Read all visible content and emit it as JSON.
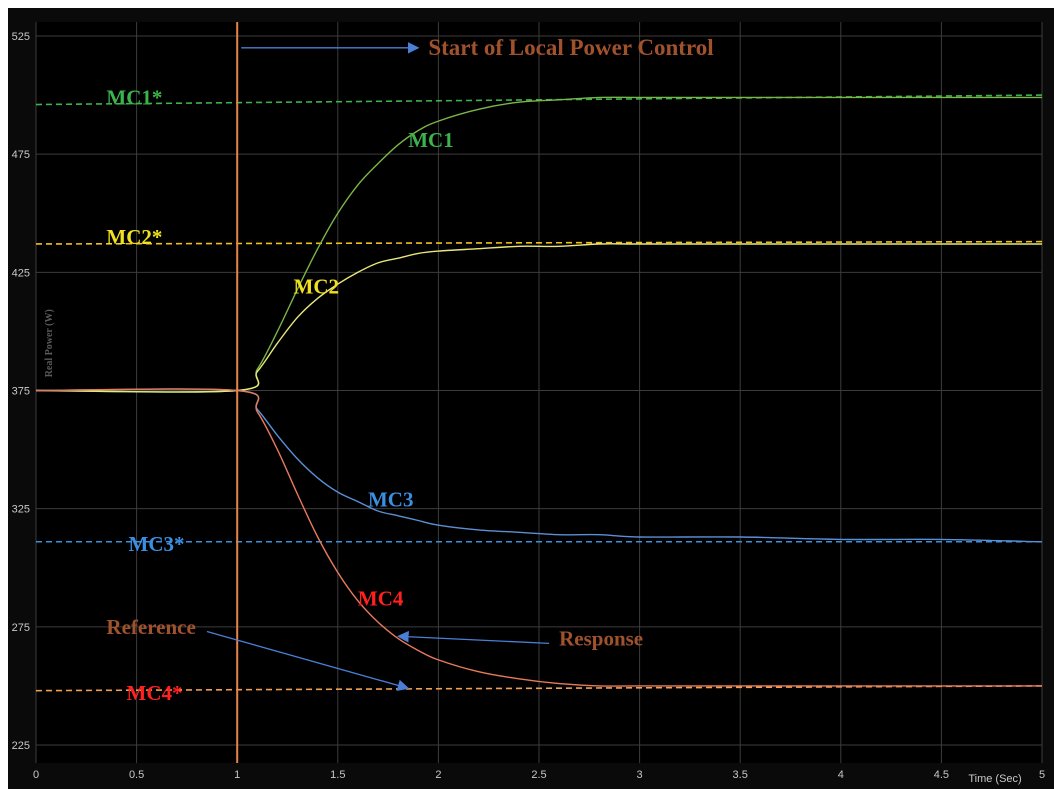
{
  "chart_data": {
    "type": "line",
    "title": "",
    "xlabel": "Time (Sec)",
    "ylabel": "Real Power (W)",
    "xlim": [
      0,
      5
    ],
    "ylim": [
      225,
      525
    ],
    "x_ticks": [
      0,
      0.5,
      1,
      1.5,
      2,
      2.5,
      3,
      3.5,
      4,
      4.5,
      5
    ],
    "x_tick_labels": [
      "0",
      "0.5",
      "1",
      "1.5",
      "2",
      "2.5",
      "3",
      "3.5",
      "4",
      "4.5",
      "5"
    ],
    "y_ticks": [
      225,
      275,
      325,
      375,
      425,
      475,
      525
    ],
    "y_tick_labels": [
      "225",
      "275",
      "325",
      "375",
      "425",
      "475",
      "525"
    ],
    "grid": true,
    "background": "#000000",
    "event_line": {
      "x": 1.0,
      "color": "#e8834e"
    },
    "series": [
      {
        "name": "MC1",
        "color": "#7ab648",
        "x": [
          0,
          1.0,
          1.1,
          1.2,
          1.3,
          1.4,
          1.5,
          1.6,
          1.7,
          1.8,
          1.9,
          2.0,
          2.2,
          2.4,
          2.6,
          2.8,
          3.0,
          3.5,
          4.0,
          4.5,
          5.0
        ],
        "y": [
          375,
          375,
          384,
          400,
          418,
          435,
          450,
          462,
          471,
          479,
          485,
          489,
          494,
          497,
          498,
          499,
          499,
          499,
          499,
          499,
          499
        ],
        "reference": {
          "name": "MC1*",
          "value": 496,
          "value_end": 500,
          "color": "#3cb44b"
        }
      },
      {
        "name": "MC2",
        "color": "#e8e87a",
        "x": [
          0,
          1.0,
          1.1,
          1.2,
          1.3,
          1.4,
          1.5,
          1.6,
          1.7,
          1.8,
          1.9,
          2.0,
          2.2,
          2.4,
          2.6,
          2.8,
          3.0,
          3.5,
          4.0,
          4.5,
          5.0
        ],
        "y": [
          375,
          375,
          383,
          395,
          406,
          414,
          420,
          425,
          429,
          431,
          433,
          434,
          435,
          436,
          436,
          437,
          437,
          437,
          437,
          437,
          437
        ],
        "reference": {
          "name": "MC2*",
          "value": 437,
          "value_end": 438,
          "color": "#f0c020"
        }
      },
      {
        "name": "MC3",
        "color": "#5b8fd4",
        "x": [
          0,
          1.0,
          1.1,
          1.2,
          1.3,
          1.4,
          1.5,
          1.6,
          1.7,
          1.8,
          1.9,
          2.0,
          2.2,
          2.4,
          2.6,
          2.8,
          3.0,
          3.5,
          4.0,
          4.5,
          5.0
        ],
        "y": [
          375,
          375,
          367,
          356,
          346,
          338,
          332,
          328,
          324,
          322,
          320,
          318,
          316,
          315,
          314,
          314,
          313,
          313,
          312,
          312,
          311
        ],
        "reference": {
          "name": "MC3*",
          "value": 311,
          "value_end": 311,
          "color": "#3a8fe0"
        }
      },
      {
        "name": "MC4",
        "color": "#e87a5b",
        "x": [
          0,
          1.0,
          1.1,
          1.2,
          1.3,
          1.4,
          1.5,
          1.6,
          1.7,
          1.8,
          1.9,
          2.0,
          2.2,
          2.4,
          2.6,
          2.8,
          3.0,
          3.5,
          4.0,
          4.5,
          5.0
        ],
        "y": [
          375,
          375,
          366,
          350,
          331,
          313,
          298,
          286,
          277,
          270,
          265,
          261,
          256,
          253,
          251,
          250,
          250,
          250,
          250,
          250,
          250
        ],
        "reference": {
          "name": "MC4*",
          "value": 248,
          "value_end": 250,
          "color": "#f0a050"
        }
      }
    ],
    "annotations": [
      {
        "text": "Start of Local Power Control",
        "color": "#a0522d",
        "x": 1.95,
        "y": 517,
        "arrow_from": [
          1.02,
          520
        ],
        "arrow_to": [
          1.9,
          520
        ]
      },
      {
        "text": "MC1*",
        "color": "#3cb44b",
        "x": 0.35,
        "y": 496
      },
      {
        "text": "MC1",
        "color": "#3cb44b",
        "x": 1.85,
        "y": 478
      },
      {
        "text": "MC2*",
        "color": "#f0e020",
        "x": 0.35,
        "y": 437
      },
      {
        "text": "MC2",
        "color": "#f0e020",
        "x": 1.28,
        "y": 416
      },
      {
        "text": "MC3",
        "color": "#3a8fe0",
        "x": 1.65,
        "y": 326
      },
      {
        "text": "MC3*",
        "color": "#3a8fe0",
        "x": 0.46,
        "y": 307
      },
      {
        "text": "MC4",
        "color": "#ff2020",
        "x": 1.6,
        "y": 284
      },
      {
        "text": "Reference",
        "color": "#a0522d",
        "x": 0.35,
        "y": 272,
        "arrow_from": [
          0.85,
          273
        ],
        "arrow_to": [
          1.85,
          249
        ]
      },
      {
        "text": "Response",
        "color": "#a0522d",
        "x": 2.6,
        "y": 267,
        "arrow_from": [
          2.55,
          268
        ],
        "arrow_to": [
          1.8,
          271
        ]
      },
      {
        "text": "MC4*",
        "color": "#ff2020",
        "x": 0.45,
        "y": 244
      }
    ]
  }
}
